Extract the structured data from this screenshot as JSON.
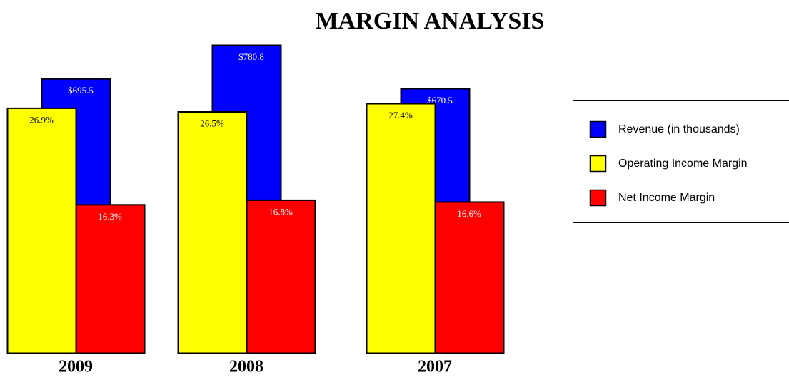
{
  "chart_data": {
    "type": "bar",
    "title": "MARGIN ANALYSIS",
    "categories": [
      "2009",
      "2008",
      "2007"
    ],
    "series": [
      {
        "name": "Revenue (in thousands)",
        "color": "#0000ff",
        "axis": "y2",
        "values": [
          695.5,
          780.8,
          670.5
        ],
        "value_labels": [
          "$695.5",
          "$780.8",
          "$670.5"
        ]
      },
      {
        "name": "Operating Income Margin",
        "color": "#ffff00",
        "values": [
          26.9,
          26.5,
          27.4
        ],
        "value_labels": [
          "26.9%",
          "26.5%",
          "27.4%"
        ]
      },
      {
        "name": "Net Income Margin",
        "color": "#ff0000",
        "values": [
          16.3,
          16.8,
          16.6
        ],
        "value_labels": [
          "16.3%",
          "16.8%",
          "16.6%"
        ]
      }
    ],
    "legend": "right"
  }
}
